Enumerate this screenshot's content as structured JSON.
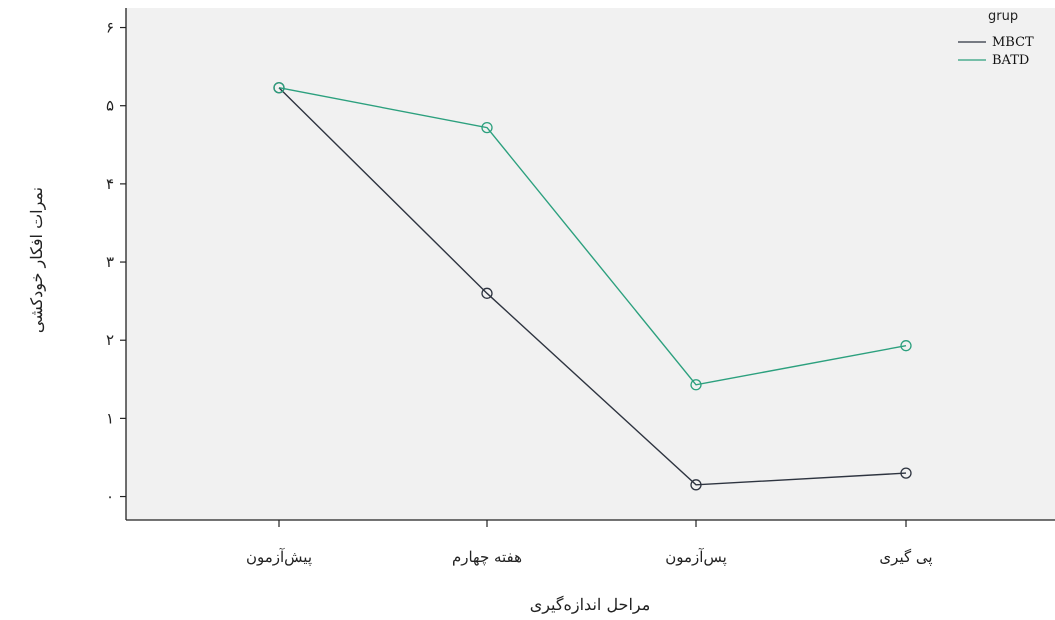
{
  "chart_data": {
    "type": "line",
    "categories": [
      "پیش‌آزمون",
      "هفته چهارم",
      "پس‌آزمون",
      "پی گیری"
    ],
    "series": [
      {
        "name": "MBCT",
        "values": [
          5.23,
          2.6,
          0.15,
          0.3
        ]
      },
      {
        "name": "BATD",
        "values": [
          5.23,
          4.72,
          1.43,
          1.93
        ]
      }
    ],
    "xlabel": "مراحل اندازه‌گیری",
    "ylabel": "نمرات افکار خودکشی",
    "ylim": [
      -0.3,
      6.25
    ],
    "yticks": [
      0,
      1,
      2,
      3,
      4,
      5,
      6
    ],
    "ytick_labels": [
      "۰",
      "۱",
      "۲",
      "۳",
      "۴",
      "۵",
      "۶"
    ],
    "legend": {
      "title": "grup",
      "position": "top-right"
    },
    "grid": false,
    "markers": "open-circle",
    "colors": {
      "MBCT": "#2e3440",
      "BATD": "#2ca07e",
      "axis": "#222222",
      "plot_background": "#f1f1f1"
    }
  }
}
